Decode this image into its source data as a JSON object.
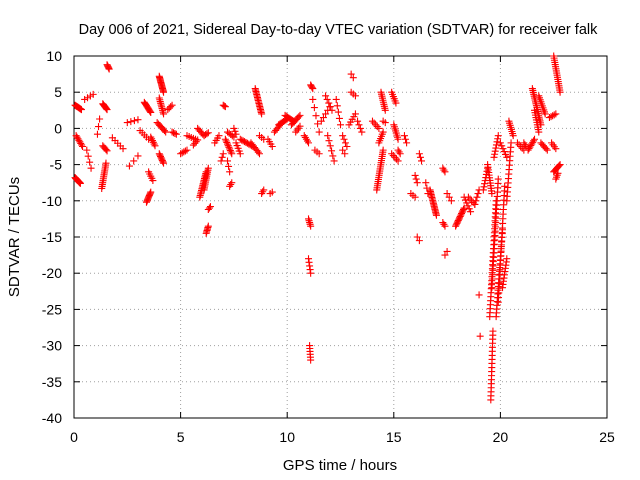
{
  "chart_data": {
    "type": "scatter",
    "title": "Day 006 of 2021, Sidereal Day-to-day VTEC variation (SDTVAR) for receiver falk",
    "xlabel": "GPS time / hours",
    "ylabel": "SDTVAR / TECUs",
    "xlim": [
      0,
      25
    ],
    "ylim": [
      -40,
      10
    ],
    "xticks": [
      0,
      5,
      10,
      15,
      20,
      25
    ],
    "yticks": [
      -40,
      -35,
      -30,
      -25,
      -20,
      -15,
      -10,
      -5,
      0,
      5,
      10
    ],
    "grid": true,
    "marker": "plus",
    "color": "#ff0000",
    "series": [
      {
        "name": "SDTVAR",
        "segments": [
          {
            "x0": 0.05,
            "y0": -6.8,
            "x1": 0.3,
            "y1": -7.6,
            "n": 14
          },
          {
            "x0": 0.05,
            "y0": 3.2,
            "x1": 0.35,
            "y1": 2.6,
            "n": 10
          },
          {
            "x0": 0.1,
            "y0": -1.0,
            "x1": 0.4,
            "y1": -2.5,
            "n": 8
          },
          {
            "x0": 0.5,
            "y0": 4.0,
            "x1": 0.9,
            "y1": 4.7,
            "n": 4
          },
          {
            "x0": 0.6,
            "y0": -3.0,
            "x1": 0.8,
            "y1": -5.5,
            "n": 4
          },
          {
            "x0": 1.1,
            "y0": -0.8,
            "x1": 1.2,
            "y1": 1.3,
            "n": 3
          },
          {
            "x0": 1.3,
            "y0": -8.3,
            "x1": 1.5,
            "y1": -4.8,
            "n": 14
          },
          {
            "x0": 1.35,
            "y0": 3.4,
            "x1": 1.55,
            "y1": 2.6,
            "n": 8
          },
          {
            "x0": 1.35,
            "y0": -2.4,
            "x1": 1.55,
            "y1": -3.1,
            "n": 5
          },
          {
            "x0": 1.55,
            "y0": 8.8,
            "x1": 1.65,
            "y1": 8.2,
            "n": 5
          },
          {
            "x0": 1.8,
            "y0": -1.3,
            "x1": 2.3,
            "y1": -2.8,
            "n": 5
          },
          {
            "x0": 2.5,
            "y0": 0.8,
            "x1": 3.0,
            "y1": 1.2,
            "n": 4
          },
          {
            "x0": 2.6,
            "y0": -5.2,
            "x1": 3.0,
            "y1": -3.8,
            "n": 3
          },
          {
            "x0": 3.1,
            "y0": -0.3,
            "x1": 3.5,
            "y1": -1.5,
            "n": 5
          },
          {
            "x0": 3.3,
            "y0": 3.6,
            "x1": 3.6,
            "y1": 2.2,
            "n": 10
          },
          {
            "x0": 3.4,
            "y0": -10.2,
            "x1": 3.6,
            "y1": -8.8,
            "n": 10
          },
          {
            "x0": 3.5,
            "y0": -6.0,
            "x1": 3.7,
            "y1": -7.2,
            "n": 5
          },
          {
            "x0": 3.6,
            "y0": -1.2,
            "x1": 3.8,
            "y1": -2.4,
            "n": 6
          },
          {
            "x0": 4.0,
            "y0": 7.2,
            "x1": 4.2,
            "y1": 5.0,
            "n": 14
          },
          {
            "x0": 4.0,
            "y0": 4.2,
            "x1": 4.2,
            "y1": 2.0,
            "n": 10
          },
          {
            "x0": 4.0,
            "y0": -3.5,
            "x1": 4.2,
            "y1": -4.8,
            "n": 8
          },
          {
            "x0": 3.9,
            "y0": 0.8,
            "x1": 4.3,
            "y1": -0.5,
            "n": 8
          },
          {
            "x0": 4.4,
            "y0": 2.6,
            "x1": 4.6,
            "y1": 3.2,
            "n": 4
          },
          {
            "x0": 4.6,
            "y0": -0.5,
            "x1": 4.8,
            "y1": -0.8,
            "n": 4
          },
          {
            "x0": 5.0,
            "y0": -3.5,
            "x1": 5.3,
            "y1": -3.0,
            "n": 5
          },
          {
            "x0": 5.3,
            "y0": -1.0,
            "x1": 5.7,
            "y1": -1.5,
            "n": 5
          },
          {
            "x0": 5.6,
            "y0": -2.3,
            "x1": 5.8,
            "y1": -1.6,
            "n": 4
          },
          {
            "x0": 5.8,
            "y0": 0.0,
            "x1": 6.1,
            "y1": -1.0,
            "n": 6
          },
          {
            "x0": 5.9,
            "y0": -9.5,
            "x1": 6.2,
            "y1": -6.0,
            "n": 16
          },
          {
            "x0": 6.1,
            "y0": -8.5,
            "x1": 6.3,
            "y1": -5.5,
            "n": 12
          },
          {
            "x0": 6.1,
            "y0": -1.0,
            "x1": 6.3,
            "y1": -0.6,
            "n": 4
          },
          {
            "x0": 6.2,
            "y0": -14.5,
            "x1": 6.3,
            "y1": -13.5,
            "n": 6
          },
          {
            "x0": 6.3,
            "y0": -11.2,
            "x1": 6.4,
            "y1": -10.8,
            "n": 3
          },
          {
            "x0": 6.6,
            "y0": -2.0,
            "x1": 6.8,
            "y1": -1.0,
            "n": 4
          },
          {
            "x0": 6.9,
            "y0": -4.5,
            "x1": 7.0,
            "y1": -3.5,
            "n": 3
          },
          {
            "x0": 7.0,
            "y0": 3.2,
            "x1": 7.1,
            "y1": 3.0,
            "n": 3
          },
          {
            "x0": 7.1,
            "y0": -1.5,
            "x1": 7.4,
            "y1": -3.5,
            "n": 10
          },
          {
            "x0": 7.2,
            "y0": -0.5,
            "x1": 7.5,
            "y1": -1.2,
            "n": 5
          },
          {
            "x0": 7.2,
            "y0": -4.5,
            "x1": 7.3,
            "y1": -6.0,
            "n": 3
          },
          {
            "x0": 7.3,
            "y0": -8.0,
            "x1": 7.4,
            "y1": -7.5,
            "n": 3
          },
          {
            "x0": 7.5,
            "y0": 0.0,
            "x1": 7.6,
            "y1": -0.8,
            "n": 3
          },
          {
            "x0": 7.6,
            "y0": -2.0,
            "x1": 7.8,
            "y1": -3.5,
            "n": 5
          },
          {
            "x0": 7.8,
            "y0": -1.5,
            "x1": 8.4,
            "y1": -2.5,
            "n": 10
          },
          {
            "x0": 8.3,
            "y0": -2.0,
            "x1": 8.7,
            "y1": -3.5,
            "n": 8
          },
          {
            "x0": 8.5,
            "y0": 5.5,
            "x1": 8.8,
            "y1": 2.0,
            "n": 18
          },
          {
            "x0": 8.7,
            "y0": -1.0,
            "x1": 8.9,
            "y1": -1.5,
            "n": 3
          },
          {
            "x0": 8.8,
            "y0": -9.0,
            "x1": 8.9,
            "y1": -8.5,
            "n": 3
          },
          {
            "x0": 9.1,
            "y0": -1.5,
            "x1": 9.3,
            "y1": -2.5,
            "n": 4
          },
          {
            "x0": 9.2,
            "y0": -9.0,
            "x1": 9.3,
            "y1": -8.8,
            "n": 2
          },
          {
            "x0": 9.4,
            "y0": -0.5,
            "x1": 9.7,
            "y1": 0.6,
            "n": 6
          },
          {
            "x0": 9.6,
            "y0": 0.5,
            "x1": 10.0,
            "y1": 1.3,
            "n": 8
          },
          {
            "x0": 9.9,
            "y0": 1.8,
            "x1": 10.3,
            "y1": 1.0,
            "n": 8
          },
          {
            "x0": 10.2,
            "y0": 0.5,
            "x1": 10.6,
            "y1": 1.8,
            "n": 8
          },
          {
            "x0": 10.4,
            "y0": -0.5,
            "x1": 10.6,
            "y1": 0.3,
            "n": 4
          },
          {
            "x0": 10.8,
            "y0": -1.0,
            "x1": 11.0,
            "y1": -2.0,
            "n": 5
          },
          {
            "x0": 11.0,
            "y0": -12.5,
            "x1": 11.1,
            "y1": -13.5,
            "n": 5
          },
          {
            "x0": 11.0,
            "y0": -18.0,
            "x1": 11.1,
            "y1": -20.0,
            "n": 5
          },
          {
            "x0": 11.05,
            "y0": -30.0,
            "x1": 11.1,
            "y1": -32.0,
            "n": 6
          },
          {
            "x0": 11.1,
            "y0": 6.0,
            "x1": 11.2,
            "y1": 5.5,
            "n": 4
          },
          {
            "x0": 11.2,
            "y0": 4.0,
            "x1": 11.5,
            "y1": -0.5,
            "n": 5
          },
          {
            "x0": 11.3,
            "y0": -3.0,
            "x1": 11.5,
            "y1": -3.5,
            "n": 3
          },
          {
            "x0": 11.6,
            "y0": 1.0,
            "x1": 12.0,
            "y1": 3.0,
            "n": 5
          },
          {
            "x0": 11.8,
            "y0": 4.5,
            "x1": 12.1,
            "y1": 2.5,
            "n": 5
          },
          {
            "x0": 11.9,
            "y0": -1.0,
            "x1": 12.2,
            "y1": -4.5,
            "n": 6
          },
          {
            "x0": 12.3,
            "y0": 4.0,
            "x1": 12.5,
            "y1": 0.5,
            "n": 5
          },
          {
            "x0": 12.6,
            "y0": -1.0,
            "x1": 12.8,
            "y1": -2.5,
            "n": 4
          },
          {
            "x0": 12.6,
            "y0": -3.0,
            "x1": 12.7,
            "y1": -3.5,
            "n": 2
          },
          {
            "x0": 12.9,
            "y0": 0.5,
            "x1": 13.2,
            "y1": 2.0,
            "n": 5
          },
          {
            "x0": 13.0,
            "y0": 5.0,
            "x1": 13.2,
            "y1": 4.5,
            "n": 3
          },
          {
            "x0": 13.0,
            "y0": 7.5,
            "x1": 13.1,
            "y1": 7.0,
            "n": 2
          },
          {
            "x0": 13.3,
            "y0": 1.0,
            "x1": 13.5,
            "y1": -0.5,
            "n": 4
          },
          {
            "x0": 14.0,
            "y0": 1.0,
            "x1": 14.3,
            "y1": 0.0,
            "n": 5
          },
          {
            "x0": 14.2,
            "y0": -8.5,
            "x1": 14.5,
            "y1": -3.0,
            "n": 20
          },
          {
            "x0": 14.3,
            "y0": -2.0,
            "x1": 14.5,
            "y1": -0.5,
            "n": 6
          },
          {
            "x0": 14.4,
            "y0": 5.0,
            "x1": 14.6,
            "y1": 2.5,
            "n": 10
          },
          {
            "x0": 14.5,
            "y0": 1.0,
            "x1": 14.6,
            "y1": 0.8,
            "n": 2
          },
          {
            "x0": 14.9,
            "y0": -3.5,
            "x1": 15.2,
            "y1": -4.5,
            "n": 5
          },
          {
            "x0": 14.9,
            "y0": 5.0,
            "x1": 15.1,
            "y1": 3.5,
            "n": 6
          },
          {
            "x0": 15.0,
            "y0": 0.5,
            "x1": 15.2,
            "y1": -1.5,
            "n": 8
          },
          {
            "x0": 15.2,
            "y0": -3.0,
            "x1": 15.3,
            "y1": -3.5,
            "n": 3
          },
          {
            "x0": 15.5,
            "y0": -1.0,
            "x1": 15.6,
            "y1": -2.0,
            "n": 3
          },
          {
            "x0": 15.8,
            "y0": -9.0,
            "x1": 16.0,
            "y1": -9.5,
            "n": 3
          },
          {
            "x0": 16.0,
            "y0": -6.5,
            "x1": 16.1,
            "y1": -7.5,
            "n": 3
          },
          {
            "x0": 16.1,
            "y0": -15.0,
            "x1": 16.2,
            "y1": -15.5,
            "n": 2
          },
          {
            "x0": 16.2,
            "y0": -3.5,
            "x1": 16.3,
            "y1": -4.5,
            "n": 3
          },
          {
            "x0": 16.5,
            "y0": -7.5,
            "x1": 16.6,
            "y1": -9.0,
            "n": 3
          },
          {
            "x0": 16.7,
            "y0": -8.5,
            "x1": 17.0,
            "y1": -12.0,
            "n": 18
          },
          {
            "x0": 17.3,
            "y0": -5.5,
            "x1": 17.4,
            "y1": -6.0,
            "n": 3
          },
          {
            "x0": 17.3,
            "y0": -13.0,
            "x1": 17.4,
            "y1": -13.5,
            "n": 3
          },
          {
            "x0": 17.4,
            "y0": -17.5,
            "x1": 17.5,
            "y1": -17.0,
            "n": 2
          },
          {
            "x0": 17.5,
            "y0": -9.0,
            "x1": 17.7,
            "y1": -10.0,
            "n": 3
          },
          {
            "x0": 17.9,
            "y0": -13.5,
            "x1": 18.3,
            "y1": -11.0,
            "n": 14
          },
          {
            "x0": 18.3,
            "y0": -9.5,
            "x1": 18.6,
            "y1": -11.5,
            "n": 6
          },
          {
            "x0": 18.5,
            "y0": -9.5,
            "x1": 18.8,
            "y1": -10.5,
            "n": 5
          },
          {
            "x0": 18.8,
            "y0": -10.5,
            "x1": 19.0,
            "y1": -8.5,
            "n": 5
          },
          {
            "x0": 19.0,
            "y0": -23.0,
            "x1": 19.1,
            "y1": -23.0,
            "n": 1
          },
          {
            "x0": 19.05,
            "y0": -28.7,
            "x1": 19.1,
            "y1": -28.7,
            "n": 1
          },
          {
            "x0": 19.2,
            "y0": -8.5,
            "x1": 19.4,
            "y1": -5.5,
            "n": 8
          },
          {
            "x0": 19.4,
            "y0": -5.0,
            "x1": 19.6,
            "y1": -9.0,
            "n": 12
          },
          {
            "x0": 19.5,
            "y0": -26.0,
            "x1": 19.8,
            "y1": -10.0,
            "n": 30
          },
          {
            "x0": 19.55,
            "y0": -37.5,
            "x1": 19.65,
            "y1": -28.0,
            "n": 18
          },
          {
            "x0": 19.6,
            "y0": -22.0,
            "x1": 19.9,
            "y1": -7.0,
            "n": 26
          },
          {
            "x0": 19.7,
            "y0": -4.0,
            "x1": 19.9,
            "y1": -1.0,
            "n": 8
          },
          {
            "x0": 19.8,
            "y0": -26.0,
            "x1": 20.1,
            "y1": -14.0,
            "n": 24
          },
          {
            "x0": 19.9,
            "y0": -24.0,
            "x1": 20.2,
            "y1": -8.0,
            "n": 26
          },
          {
            "x0": 20.0,
            "y0": -2.0,
            "x1": 20.3,
            "y1": -4.0,
            "n": 6
          },
          {
            "x0": 20.1,
            "y0": -22.0,
            "x1": 20.3,
            "y1": -18.0,
            "n": 10
          },
          {
            "x0": 20.3,
            "y0": -10.0,
            "x1": 20.5,
            "y1": -2.0,
            "n": 14
          },
          {
            "x0": 20.4,
            "y0": 1.0,
            "x1": 20.6,
            "y1": -1.0,
            "n": 8
          },
          {
            "x0": 20.8,
            "y0": -2.0,
            "x1": 21.1,
            "y1": -3.0,
            "n": 5
          },
          {
            "x0": 21.1,
            "y0": -2.0,
            "x1": 21.2,
            "y1": -2.5,
            "n": 3
          },
          {
            "x0": 21.3,
            "y0": -3.0,
            "x1": 21.6,
            "y1": -1.5,
            "n": 8
          },
          {
            "x0": 21.5,
            "y0": 5.5,
            "x1": 21.9,
            "y1": 0.5,
            "n": 20
          },
          {
            "x0": 21.6,
            "y0": 2.5,
            "x1": 21.8,
            "y1": -0.5,
            "n": 10
          },
          {
            "x0": 21.8,
            "y0": 4.5,
            "x1": 22.1,
            "y1": 2.0,
            "n": 10
          },
          {
            "x0": 21.9,
            "y0": -2.0,
            "x1": 22.2,
            "y1": -3.0,
            "n": 6
          },
          {
            "x0": 22.3,
            "y0": 1.5,
            "x1": 22.6,
            "y1": 2.0,
            "n": 5
          },
          {
            "x0": 22.4,
            "y0": -2.0,
            "x1": 22.6,
            "y1": -2.8,
            "n": 4
          },
          {
            "x0": 22.5,
            "y0": 10.0,
            "x1": 22.8,
            "y1": 5.0,
            "n": 18
          },
          {
            "x0": 22.5,
            "y0": -6.0,
            "x1": 22.8,
            "y1": -5.0,
            "n": 8
          },
          {
            "x0": 22.6,
            "y0": -7.0,
            "x1": 22.7,
            "y1": -6.2,
            "n": 4
          }
        ]
      }
    ]
  }
}
